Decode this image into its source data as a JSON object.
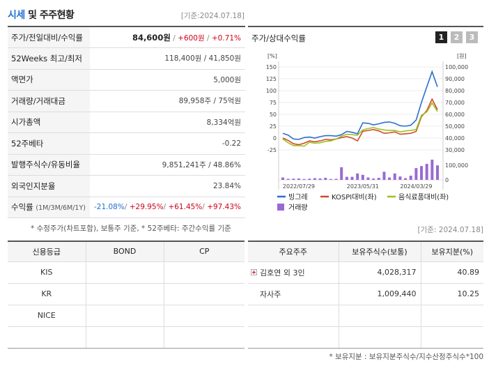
{
  "header": {
    "title_highlight": "시세",
    "title_rest": "및 주주현황",
    "date": "[기준:2024.07.18]"
  },
  "info": {
    "price_label": "주가/전일대비/수익률",
    "price": "84,600원",
    "change": "+600원",
    "change_pct": "+0.71%",
    "weeks52_label": "52Weeks 최고/최저",
    "weeks52_value": "118,400원 / 41,850원",
    "par_label": "액면가",
    "par_value": "5,000원",
    "volume_label": "거래량/거래대금",
    "volume_value": "89,958주 / 75억원",
    "mcap_label": "시가총액",
    "mcap_value": "8,334억원",
    "beta_label": "52주베타",
    "beta_value": "-0.22",
    "shares_label": "발행주식수/유동비율",
    "shares_value": "9,851,241주 / 48.86%",
    "foreign_label": "외국인지분율",
    "foreign_value": "23.84%",
    "return_label": "수익률",
    "return_period": "(1M/3M/6M/1Y)",
    "return_1m": "-21.08%",
    "return_3m": "+29.95%",
    "return_6m": "+61.45%",
    "return_1y": "+97.43%"
  },
  "note_left": "* 수정주가(차트포함), 보통주 기준, * 52주베타: 주간수익률 기준",
  "chart_panel": {
    "title": "주가/상대수익률",
    "tabs": [
      "1",
      "2",
      "3"
    ]
  },
  "chart_data": {
    "type": "line",
    "left_unit": "[%]",
    "right_unit": "[원]",
    "left_ticks": [
      "150",
      "125",
      "100",
      "75",
      "50",
      "25",
      "0",
      "-25"
    ],
    "right_ticks": [
      "100,000",
      "90,000",
      "80,000",
      "70,000",
      "60,000",
      "50,000",
      "40,000",
      "30,000"
    ],
    "volume_ticks": [
      "100,000",
      "0"
    ],
    "x_labels": [
      "2022/07/29",
      "2023/05/31",
      "2024/03/29"
    ],
    "ylim_left": [
      -25,
      150
    ],
    "ylim_right": [
      30000,
      100000
    ],
    "series": [
      {
        "name": "빙그레",
        "color": "#2a6dd2",
        "values": [
          10,
          6,
          -2,
          -3,
          1,
          2,
          0,
          3,
          5,
          5,
          4,
          7,
          14,
          12,
          9,
          32,
          31,
          28,
          30,
          33,
          34,
          31,
          26,
          25,
          27,
          38,
          75,
          108,
          140,
          108
        ]
      },
      {
        "name": "KOSPI대비(좌)",
        "color": "#d04a2a",
        "values": [
          0,
          -5,
          -12,
          -14,
          -11,
          -6,
          -8,
          -6,
          -3,
          -4,
          -2,
          1,
          3,
          0,
          -6,
          14,
          16,
          18,
          15,
          10,
          11,
          13,
          8,
          9,
          10,
          14,
          45,
          58,
          82,
          60
        ]
      },
      {
        "name": "음식료품대비(좌)",
        "color": "#9bc21c",
        "values": [
          -2,
          -10,
          -16,
          -16,
          -17,
          -9,
          -11,
          -10,
          -7,
          -6,
          -2,
          4,
          8,
          7,
          6,
          17,
          20,
          22,
          19,
          17,
          16,
          16,
          13,
          15,
          16,
          18,
          48,
          55,
          74,
          56
        ]
      }
    ],
    "volume": {
      "name": "거래량",
      "color": "#9a6ad2",
      "values": [
        14000,
        6000,
        7000,
        8000,
        5000,
        7000,
        10000,
        8000,
        12000,
        5000,
        6000,
        75000,
        18000,
        18000,
        38000,
        30000,
        14000,
        8000,
        12000,
        48000,
        14000,
        38000,
        20000,
        10000,
        25000,
        70000,
        82000,
        95000,
        120000,
        86000
      ]
    }
  },
  "chart_date": "[기준: 2024.07.18]",
  "credit": {
    "headers": [
      "신용등급",
      "BOND",
      "CP"
    ],
    "rows": [
      [
        "KIS",
        "",
        ""
      ],
      [
        "KR",
        "",
        ""
      ],
      [
        "NICE",
        "",
        ""
      ],
      [
        "",
        "",
        ""
      ]
    ]
  },
  "holders": {
    "headers": [
      "주요주주",
      "보유주식수(보통)",
      "보유지분(%)"
    ],
    "rows": [
      {
        "name": "김호연 외 3인",
        "shares": "4,028,317",
        "pct": "40.89",
        "expandable": true
      },
      {
        "name": "자사주",
        "shares": "1,009,440",
        "pct": "10.25",
        "expandable": false
      },
      {
        "name": "",
        "shares": "",
        "pct": "",
        "expandable": false
      },
      {
        "name": "",
        "shares": "",
        "pct": "",
        "expandable": false
      }
    ],
    "note": "* 보유지분 : 보유지분주식수/지수산정주식수*100"
  }
}
